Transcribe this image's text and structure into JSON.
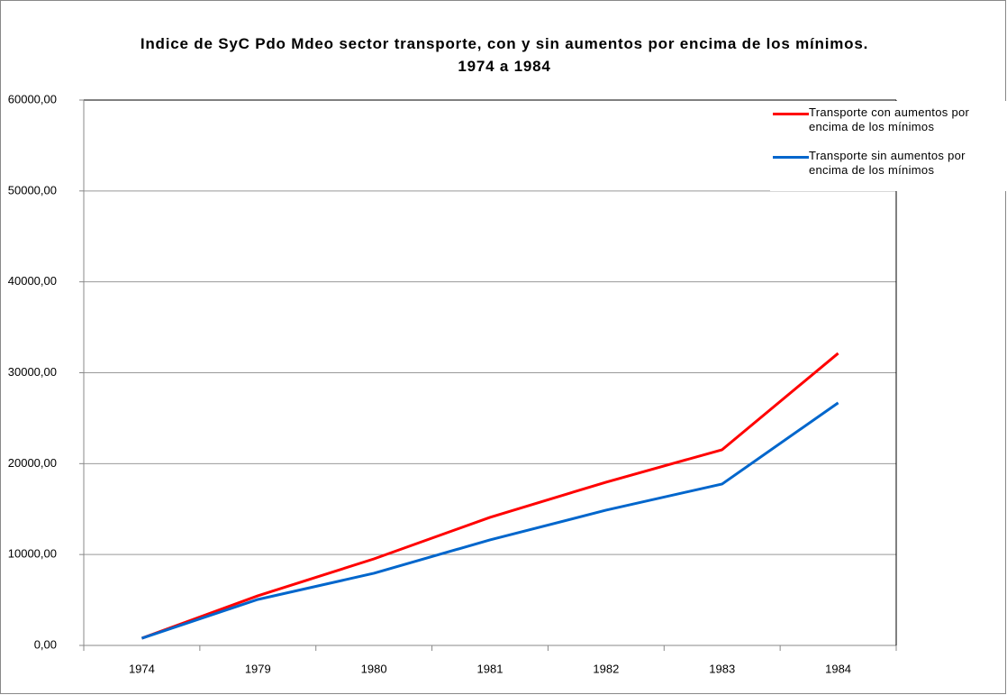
{
  "chart_data": {
    "type": "line",
    "title": "Indice de SyC Pdo Mdeo sector transporte, con y sin aumentos por encima de los mínimos. 1974 a 1984",
    "categories": [
      "1974",
      "1979",
      "1980",
      "1981",
      "1982",
      "1983",
      "1984"
    ],
    "series": [
      {
        "name": "Transporte con aumentos por encima de los mínimos",
        "color": "#ff0000",
        "values": [
          790,
          5460,
          9520,
          14090,
          17960,
          21530,
          32140
        ]
      },
      {
        "name": "Transporte sin aumentos por encima de los mínimos",
        "color": "#0066cc",
        "values": [
          790,
          5060,
          7940,
          11610,
          14880,
          17760,
          26690
        ]
      }
    ],
    "ylim": [
      0,
      60000
    ],
    "yticks": [
      {
        "value": 0,
        "label": "0,00"
      },
      {
        "value": 10000,
        "label": "10000,00"
      },
      {
        "value": 20000,
        "label": "20000,00"
      },
      {
        "value": 30000,
        "label": "30000,00"
      },
      {
        "value": 40000,
        "label": "40000,00"
      },
      {
        "value": 50000,
        "label": "50000,00"
      },
      {
        "value": 60000,
        "label": "60000,00"
      }
    ],
    "grid": true,
    "legend": "right"
  }
}
